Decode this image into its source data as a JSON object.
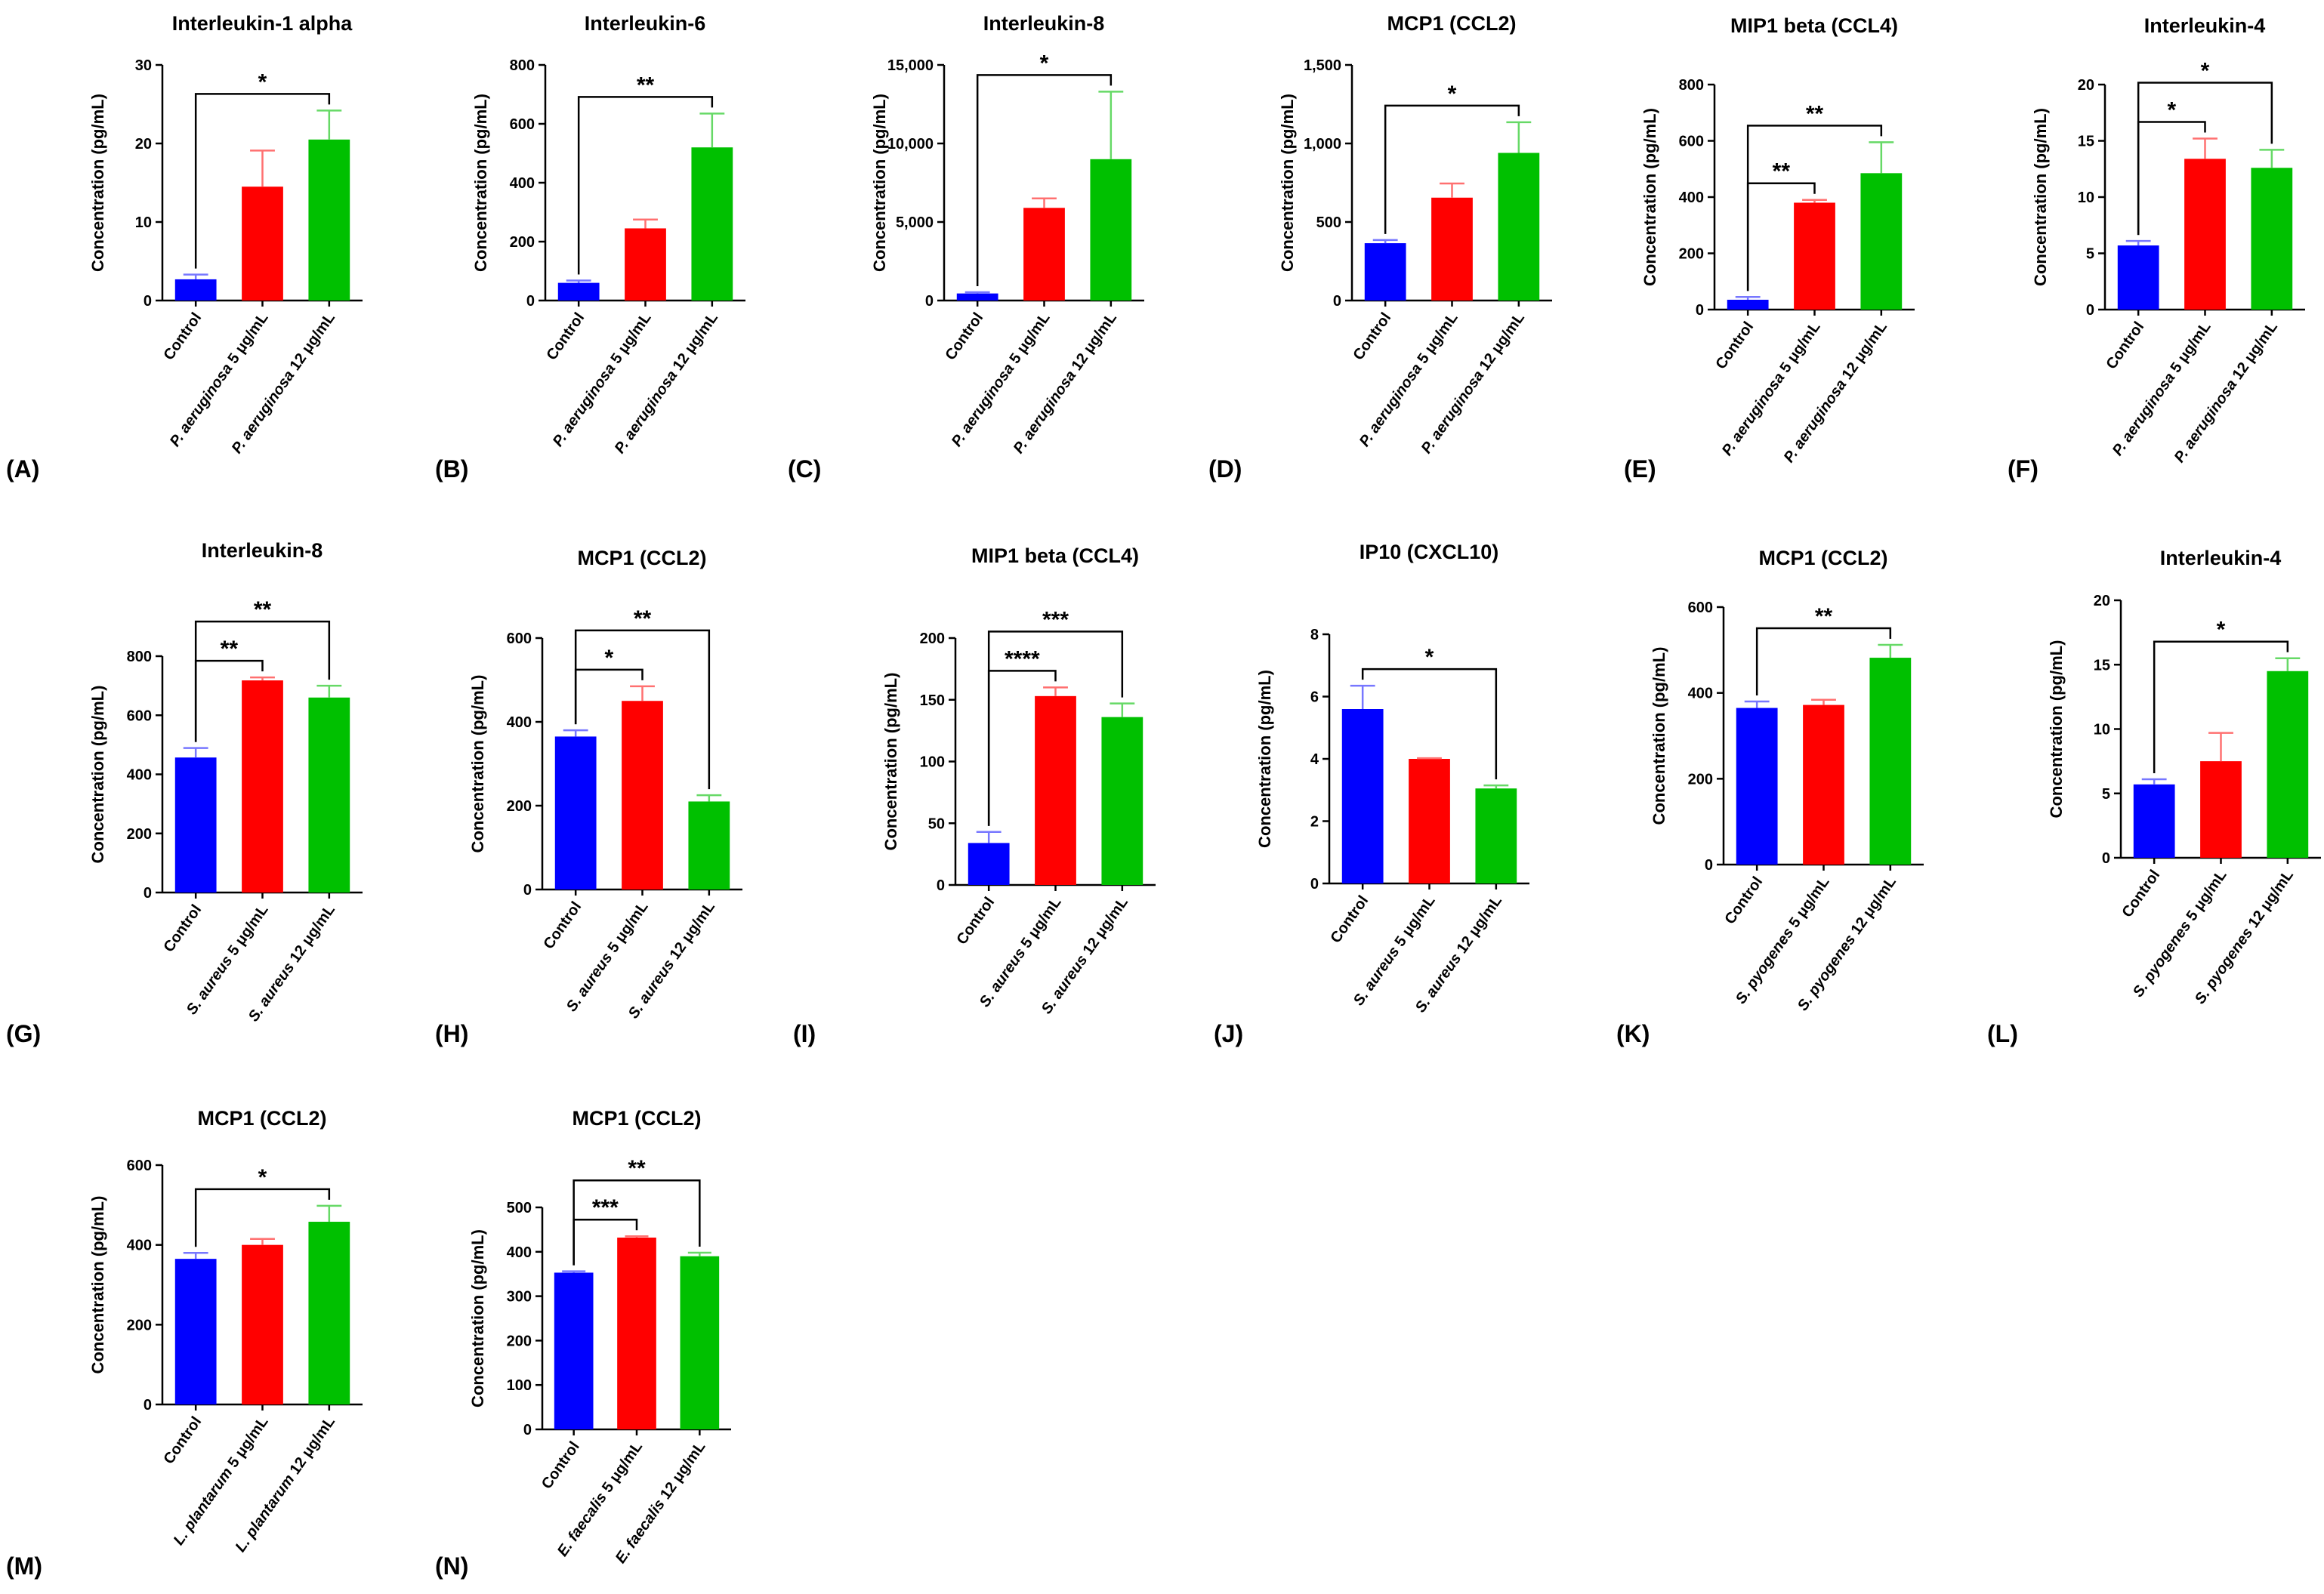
{
  "colors": {
    "control": "#0000ff",
    "low": "#ff0000",
    "high": "#00c000",
    "err_control": "#7777ff",
    "err_low": "#ff7070",
    "err_high": "#66d966"
  },
  "y_axis_label": "Concentration (pg/mL)",
  "chart_data": [
    {
      "type": "bar",
      "panel": "(A)",
      "title": "Interleukin-1 alpha",
      "categories": [
        "Control",
        "P. aeruginosa 5 μg/mL",
        "P. aeruginosa 12 μg/mL"
      ],
      "italic_prefix": [
        "",
        "P. aeruginosa",
        "P. aeruginosa"
      ],
      "rest": [
        "Control",
        " 5 μg/mL",
        " 12 μg/mL"
      ],
      "values": [
        2.7,
        14.5,
        20.5
      ],
      "errors": [
        0.6,
        4.6,
        3.7
      ],
      "ylim": [
        0,
        30
      ],
      "yticks": [
        "0",
        "10",
        "20",
        "30"
      ],
      "brackets": [
        {
          "from": 0,
          "to": 2,
          "label": "*"
        }
      ]
    },
    {
      "type": "bar",
      "panel": "(B)",
      "title": "Interleukin-6",
      "categories": [
        "Control",
        "P. aeruginosa 5 μg/mL",
        "P. aeruginosa 12 μg/mL"
      ],
      "italic_prefix": [
        "",
        "P. aeruginosa",
        "P. aeruginosa"
      ],
      "rest": [
        "Control",
        " 5 μg/mL",
        " 12 μg/mL"
      ],
      "values": [
        60,
        245,
        520
      ],
      "errors": [
        8,
        30,
        115
      ],
      "ylim": [
        0,
        800
      ],
      "yticks": [
        "0",
        "200",
        "400",
        "600",
        "800"
      ],
      "brackets": [
        {
          "from": 0,
          "to": 2,
          "label": "**"
        }
      ]
    },
    {
      "type": "bar",
      "panel": "(C)",
      "title": "Interleukin-8",
      "categories": [
        "Control",
        "P. aeruginosa 5 μg/mL",
        "P. aeruginosa 12 μg/mL"
      ],
      "italic_prefix": [
        "",
        "P. aeruginosa",
        "P. aeruginosa"
      ],
      "rest": [
        "Control",
        " 5 μg/mL",
        " 12 μg/mL"
      ],
      "values": [
        450,
        5900,
        9000
      ],
      "errors": [
        80,
        600,
        4300
      ],
      "ylim": [
        0,
        15000
      ],
      "yticks": [
        "0",
        "5,000",
        "10,000",
        "15,000"
      ],
      "brackets": [
        {
          "from": 0,
          "to": 2,
          "label": "*"
        }
      ]
    },
    {
      "type": "bar",
      "panel": "(D)",
      "title": "MCP1 (CCL2)",
      "categories": [
        "Control",
        "P. aeruginosa 5 μg/mL",
        "P. aeruginosa 12 μg/mL"
      ],
      "italic_prefix": [
        "",
        "P. aeruginosa",
        "P. aeruginosa"
      ],
      "rest": [
        "Control",
        " 5 μg/mL",
        " 12 μg/mL"
      ],
      "values": [
        365,
        655,
        940
      ],
      "errors": [
        20,
        90,
        195
      ],
      "ylim": [
        0,
        1500
      ],
      "yticks": [
        "0",
        "500",
        "1,000",
        "1,500"
      ],
      "brackets": [
        {
          "from": 0,
          "to": 2,
          "label": "*"
        }
      ]
    },
    {
      "type": "bar",
      "panel": "(E)",
      "title": "MIP1 beta (CCL4)",
      "categories": [
        "Control",
        "P. aeruginosa 5 μg/mL",
        "P. aeruginosa 12 μg/mL"
      ],
      "italic_prefix": [
        "",
        "P. aeruginosa",
        "P. aeruginosa"
      ],
      "rest": [
        "Control",
        " 5 μg/mL",
        " 12 μg/mL"
      ],
      "values": [
        35,
        380,
        485
      ],
      "errors": [
        10,
        10,
        110
      ],
      "ylim": [
        0,
        800
      ],
      "yticks": [
        "0",
        "200",
        "400",
        "600",
        "800"
      ],
      "brackets": [
        {
          "from": 0,
          "to": 1,
          "label": "**"
        },
        {
          "from": 0,
          "to": 2,
          "label": "**"
        }
      ]
    },
    {
      "type": "bar",
      "panel": "(F)",
      "title": "Interleukin-4",
      "categories": [
        "Control",
        "P. aeruginosa 5 μg/mL",
        "P. aeruginosa 12 μg/mL"
      ],
      "italic_prefix": [
        "",
        "P. aeruginosa",
        "P. aeruginosa"
      ],
      "rest": [
        "Control",
        " 5 μg/mL",
        " 12 μg/mL"
      ],
      "values": [
        5.7,
        13.4,
        12.6
      ],
      "errors": [
        0.4,
        1.8,
        1.6
      ],
      "ylim": [
        0,
        20
      ],
      "yticks": [
        "0",
        "5",
        "10",
        "15",
        "20"
      ],
      "brackets": [
        {
          "from": 0,
          "to": 1,
          "label": "*"
        },
        {
          "from": 0,
          "to": 2,
          "label": "*"
        }
      ]
    },
    {
      "type": "bar",
      "panel": "(G)",
      "title": "Interleukin-8",
      "categories": [
        "Control",
        "S. aureus 5 μg/mL",
        "S. aureus 12 μg/mL"
      ],
      "italic_prefix": [
        "",
        "S. aureus",
        "S. aureus"
      ],
      "rest": [
        "Control",
        " 5 μg/mL",
        " 12 μg/mL"
      ],
      "values": [
        457,
        718,
        660
      ],
      "errors": [
        32,
        10,
        40
      ],
      "ylim": [
        0,
        800
      ],
      "yticks": [
        "0",
        "200",
        "400",
        "600",
        "800"
      ],
      "brackets": [
        {
          "from": 0,
          "to": 1,
          "label": "**"
        },
        {
          "from": 0,
          "to": 2,
          "label": "**"
        }
      ]
    },
    {
      "type": "bar",
      "panel": "(H)",
      "title": "MCP1 (CCL2)",
      "categories": [
        "Control",
        "S. aureus 5 μg/mL",
        "S. aureus 12 μg/mL"
      ],
      "italic_prefix": [
        "",
        "S. aureus",
        "S. aureus"
      ],
      "rest": [
        "Control",
        " 5 μg/mL",
        " 12 μg/mL"
      ],
      "values": [
        365,
        450,
        210
      ],
      "errors": [
        15,
        35,
        15
      ],
      "ylim": [
        0,
        600
      ],
      "yticks": [
        "0",
        "200",
        "400",
        "600"
      ],
      "brackets": [
        {
          "from": 0,
          "to": 1,
          "label": "*"
        },
        {
          "from": 0,
          "to": 2,
          "label": "**"
        }
      ]
    },
    {
      "type": "bar",
      "panel": "(I)",
      "title": "MIP1 beta (CCL4)",
      "categories": [
        "Control",
        "S. aureus 5 μg/mL",
        "S. aureus 12 μg/mL"
      ],
      "italic_prefix": [
        "",
        "S. aureus",
        "S. aureus"
      ],
      "rest": [
        "Control",
        " 5 μg/mL",
        " 12 μg/mL"
      ],
      "values": [
        34,
        153,
        136
      ],
      "errors": [
        9,
        7,
        11
      ],
      "ylim": [
        0,
        200
      ],
      "yticks": [
        "0",
        "50",
        "100",
        "150",
        "200"
      ],
      "brackets": [
        {
          "from": 0,
          "to": 1,
          "label": "****"
        },
        {
          "from": 0,
          "to": 2,
          "label": "***"
        }
      ]
    },
    {
      "type": "bar",
      "panel": "(J)",
      "title": "IP10 (CXCL10)",
      "categories": [
        "Control",
        "S. aureus 5 μg/mL",
        "S. aureus 12 μg/mL"
      ],
      "italic_prefix": [
        "",
        "S. aureus",
        "S. aureus"
      ],
      "rest": [
        "Control",
        " 5 μg/mL",
        " 12 μg/mL"
      ],
      "values": [
        5.6,
        4.0,
        3.05
      ],
      "errors": [
        0.75,
        0.02,
        0.1
      ],
      "ylim": [
        0,
        8
      ],
      "yticks": [
        "0",
        "2",
        "4",
        "6",
        "8"
      ],
      "brackets": [
        {
          "from": 0,
          "to": 2,
          "label": "*"
        }
      ]
    },
    {
      "type": "bar",
      "panel": "(K)",
      "title": "MCP1 (CCL2)",
      "categories": [
        "Control",
        "S. pyogenes 5 μg/mL",
        "S. pyogenes 12 μg/mL"
      ],
      "italic_prefix": [
        "",
        "S. pyogenes",
        "S. pyogenes"
      ],
      "rest": [
        "Control",
        " 5 μg/mL",
        " 12 μg/mL"
      ],
      "values": [
        365,
        372,
        482
      ],
      "errors": [
        15,
        12,
        30
      ],
      "ylim": [
        0,
        600
      ],
      "yticks": [
        "0",
        "200",
        "400",
        "600"
      ],
      "brackets": [
        {
          "from": 0,
          "to": 2,
          "label": "**"
        }
      ]
    },
    {
      "type": "bar",
      "panel": "(L)",
      "title": "Interleukin-4",
      "categories": [
        "Control",
        "S. pyogenes 5 μg/mL",
        "S. pyogenes 12 μg/mL"
      ],
      "italic_prefix": [
        "",
        "S. pyogenes",
        "S. pyogenes"
      ],
      "rest": [
        "Control",
        " 5 μg/mL",
        " 12 μg/mL"
      ],
      "values": [
        5.7,
        7.5,
        14.5
      ],
      "errors": [
        0.4,
        2.2,
        1.0
      ],
      "ylim": [
        0,
        20
      ],
      "yticks": [
        "0",
        "5",
        "10",
        "15",
        "20"
      ],
      "brackets": [
        {
          "from": 0,
          "to": 2,
          "label": "*"
        }
      ]
    },
    {
      "type": "bar",
      "panel": "(M)",
      "title": "MCP1 (CCL2)",
      "categories": [
        "Control",
        "L. plantarum 5 μg/mL",
        "L. plantarum 12 μg/mL"
      ],
      "italic_prefix": [
        "",
        "L. plantarum",
        "L. plantarum"
      ],
      "rest": [
        "Control",
        " 5 μg/mL",
        " 12 μg/mL"
      ],
      "values": [
        365,
        400,
        458
      ],
      "errors": [
        15,
        15,
        40
      ],
      "ylim": [
        0,
        600
      ],
      "yticks": [
        "0",
        "200",
        "400",
        "600"
      ],
      "brackets": [
        {
          "from": 0,
          "to": 2,
          "label": "*"
        }
      ]
    },
    {
      "type": "bar",
      "panel": "(N)",
      "title": "MCP1 (CCL2)",
      "categories": [
        "Control",
        "E. faecalis 5 μg/mL",
        "E. faecalis 12 μg/mL"
      ],
      "italic_prefix": [
        "",
        "E. faecalis",
        "E. faecalis"
      ],
      "rest": [
        "Control",
        " 5 μg/mL",
        " 12 μg/mL"
      ],
      "values": [
        353,
        432,
        390
      ],
      "errors": [
        3,
        3,
        8
      ],
      "ylim": [
        0,
        500
      ],
      "yticks": [
        "0",
        "100",
        "200",
        "300",
        "400",
        "500"
      ],
      "brackets": [
        {
          "from": 0,
          "to": 1,
          "label": "***"
        },
        {
          "from": 0,
          "to": 2,
          "label": "**"
        }
      ]
    }
  ]
}
